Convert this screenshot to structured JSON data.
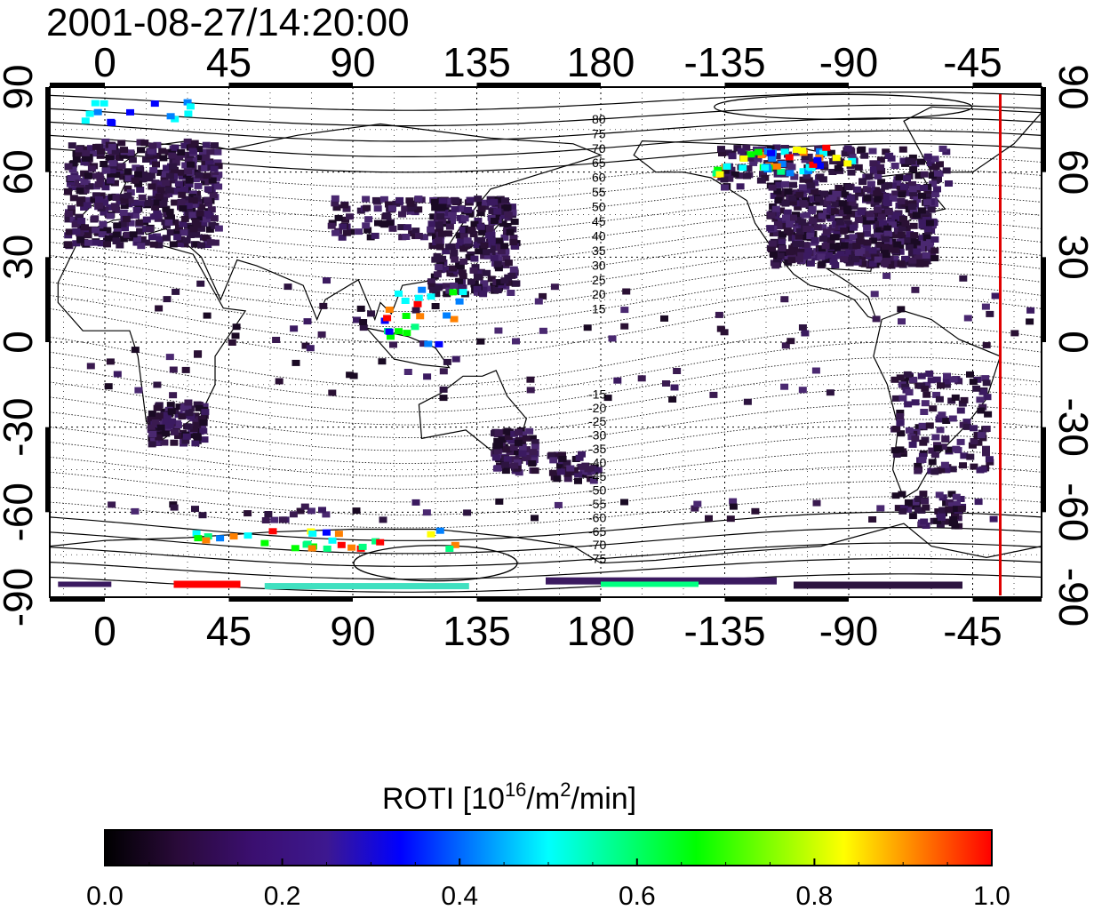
{
  "title": "2001-08-27/14:20:00",
  "map": {
    "lon_labels": [
      "0",
      "45",
      "90",
      "135",
      "180",
      "-135",
      "-90",
      "-45"
    ],
    "lon_values": [
      0,
      45,
      90,
      135,
      180,
      225,
      270,
      315
    ],
    "lat_labels": [
      "90",
      "60",
      "30",
      "0",
      "-30",
      "-60",
      "-90"
    ],
    "lat_values": [
      90,
      60,
      30,
      0,
      -30,
      -60,
      -90
    ],
    "lon_range": [
      -20,
      340
    ],
    "lat_range": [
      -90,
      90
    ],
    "grid": true,
    "magnetic_latitude_labels_north": [
      "80",
      "75",
      "70",
      "65",
      "60",
      "55",
      "50",
      "45",
      "40",
      "35",
      "30",
      "25",
      "20",
      "15"
    ],
    "magnetic_latitude_labels_south": [
      "-15",
      "-20",
      "-25",
      "-30",
      "-35",
      "-40",
      "-45",
      "-50",
      "-55",
      "-60",
      "-65",
      "-70",
      "-75"
    ],
    "marker_line_longitude": 325,
    "marker_line_color": "#e00000"
  },
  "colorbar": {
    "title_prefix": "ROTI  [10",
    "title_exp1": "16",
    "title_mid": "/m",
    "title_exp2": "2",
    "title_suffix": "/min]",
    "ticks": [
      "0.0",
      "0.2",
      "0.4",
      "0.6",
      "0.8",
      "1.0"
    ],
    "range": [
      0.0,
      1.0
    ],
    "colors": [
      "#000000",
      "#2a0a3a",
      "#3b0f70",
      "#3d1890",
      "#0000ff",
      "#0080ff",
      "#00ffff",
      "#00ff80",
      "#00ff00",
      "#80ff00",
      "#ffff00",
      "#ff8000",
      "#ff0000"
    ]
  }
}
